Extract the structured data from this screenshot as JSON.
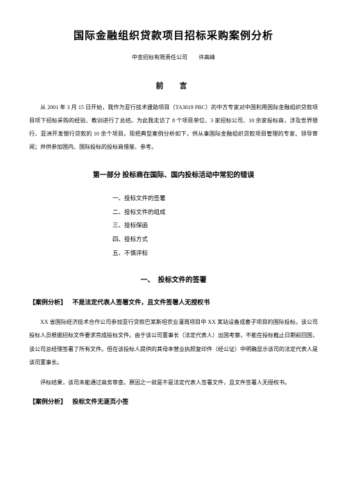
{
  "title": "国际金融组织贷款项目招标采购案例分析",
  "author": "中金招标有限责任公司　　许高峰",
  "preface": {
    "heading": "前　言",
    "body": "从 2001 年 3 月 15 日开始，我作为亚行技术援助项目（TA3019 PRC）的中方专家对中国利用国际金融组织贷款项目项下招标采购的经验、教训进行了总结。为此我走访了 8 个项目单位、3 家招标公司、10 余家投标商，涉及世界银行、亚洲开发银行贷款的 10 余个项目。现把典型案例分析如下，供从事国际金融组织贷款项目管理的专家、领导审阅；并供参加国内、国际投标的投标商借鉴、参考。"
  },
  "section1": {
    "heading": "第一部分 投标商在国际、国内投标活动中常犯的错误",
    "toc": [
      "一、投标文件的签署",
      "二、投标文件的组成",
      "三、投标保函",
      "四、投标方式",
      "五、不慎评标"
    ]
  },
  "sub1": {
    "heading": "一、　投标文件的签署"
  },
  "case1": {
    "label": "【案例分析】",
    "desc": "不是法定代表人签署文件，且文件签署人无授权书",
    "body1": "XX 省国际经济技术合作公司参加亚行贷款巴某斯坦农业灌溉项目中 XX 某站设备成套子项目的国际投标。该公司投标人员根据招标文件要求完成投标文件。由于该公司董事长（法定代表人）出国考察，不能在投标截止日期前回国，该公司总经理签署了所有文件。但在该投标人提供的其母本营业执照复印件（经公证）中明确显示该司的法定代表人是该司董事长。",
    "body2": "评标结果，该司未能通过商务审查。原因之一就是不是法定代表人签署文件，且文件签署人无授权书。"
  },
  "case2": {
    "label": "【案例分析】",
    "desc": "投标文件无逐页小签"
  }
}
